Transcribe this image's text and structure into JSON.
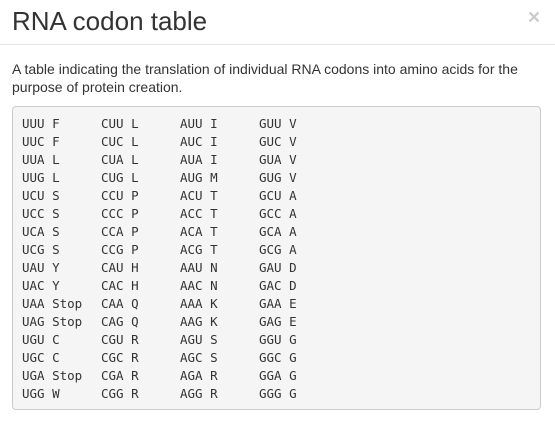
{
  "modal": {
    "title": "RNA codon table",
    "close_label": "×",
    "description": "A table indicating the translation of individual RNA codons into amino acids for the purpose of protein creation."
  },
  "codon_table": {
    "rows": [
      [
        "UUU F",
        "CUU L",
        "AUU I",
        "GUU V"
      ],
      [
        "UUC F",
        "CUC L",
        "AUC I",
        "GUC V"
      ],
      [
        "UUA L",
        "CUA L",
        "AUA I",
        "GUA V"
      ],
      [
        "UUG L",
        "CUG L",
        "AUG M",
        "GUG V"
      ],
      [
        "UCU S",
        "CCU P",
        "ACU T",
        "GCU A"
      ],
      [
        "UCC S",
        "CCC P",
        "ACC T",
        "GCC A"
      ],
      [
        "UCA S",
        "CCA P",
        "ACA T",
        "GCA A"
      ],
      [
        "UCG S",
        "CCG P",
        "ACG T",
        "GCG A"
      ],
      [
        "UAU Y",
        "CAU H",
        "AAU N",
        "GAU D"
      ],
      [
        "UAC Y",
        "CAC H",
        "AAC N",
        "GAC D"
      ],
      [
        "UAA Stop",
        "CAA Q",
        "AAA K",
        "GAA E"
      ],
      [
        "UAG Stop",
        "CAG Q",
        "AAG K",
        "GAG E"
      ],
      [
        "UGU C",
        "CGU R",
        "AGU S",
        "GGU G"
      ],
      [
        "UGC C",
        "CGC R",
        "AGC S",
        "GGC G"
      ],
      [
        "UGA Stop",
        "CGA R",
        "AGA R",
        "GGA G"
      ],
      [
        "UGG W",
        "CGG R",
        "AGG R",
        "GGG G"
      ]
    ]
  }
}
